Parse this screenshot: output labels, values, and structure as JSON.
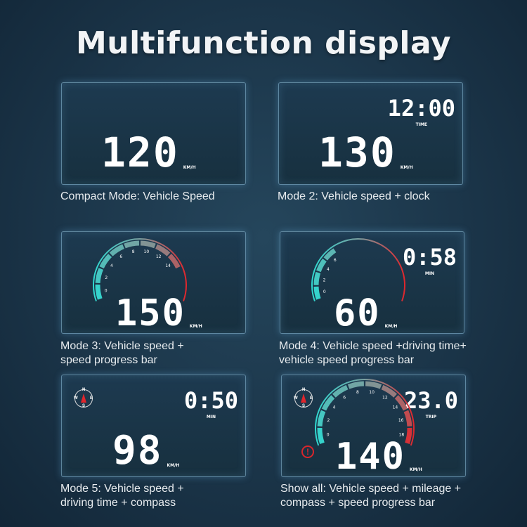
{
  "title": "Multifunction display",
  "colors": {
    "gauge_low": "#2fd8d0",
    "gauge_high": "#e0262c",
    "panel_border": "#96c8e6"
  },
  "panels": [
    {
      "speed": "120",
      "unit": "KM/H",
      "caption": [
        "Compact Mode: Vehicle Speed"
      ]
    },
    {
      "speed": "130",
      "unit": "KM/H",
      "secondary": "12:00",
      "secondary_label": "TIME",
      "caption": [
        "Mode 2: Vehicle speed + clock"
      ]
    },
    {
      "speed": "150",
      "unit": "KM/H",
      "gauge_ticks": [
        "0",
        "2",
        "4",
        "6",
        "8",
        "10",
        "12",
        "14"
      ],
      "gauge_fill": 0.8,
      "caption": [
        "Mode 3: Vehicle speed +",
        "speed progress bar"
      ]
    },
    {
      "speed": "60",
      "unit": "KM/H",
      "secondary": "0:58",
      "secondary_label": "MIN",
      "gauge_ticks": [
        "0",
        "2",
        "4",
        "6"
      ],
      "gauge_fill": 0.35,
      "caption": [
        "Mode 4: Vehicle speed +driving time+",
        "vehicle speed progress bar"
      ]
    },
    {
      "speed": "98",
      "unit": "KM/H",
      "secondary": "0:50",
      "secondary_label": "MIN",
      "compass": [
        "N",
        "E",
        "S",
        "W"
      ],
      "caption": [
        "Mode 5: Vehicle speed +",
        "driving time + compass"
      ]
    },
    {
      "speed": "140",
      "unit": "KM/H",
      "secondary": "23.0",
      "secondary_label": "TRIP",
      "compass": [
        "N",
        "E",
        "S",
        "W"
      ],
      "warning_icon": "exclamation-circle",
      "gauge_ticks": [
        "0",
        "2",
        "4",
        "6",
        "8",
        "10",
        "12",
        "14",
        "16",
        "18"
      ],
      "gauge_fill": 1.0,
      "caption": [
        "Show all: Vehicle speed + mileage +",
        "compass + speed progress bar"
      ]
    }
  ]
}
